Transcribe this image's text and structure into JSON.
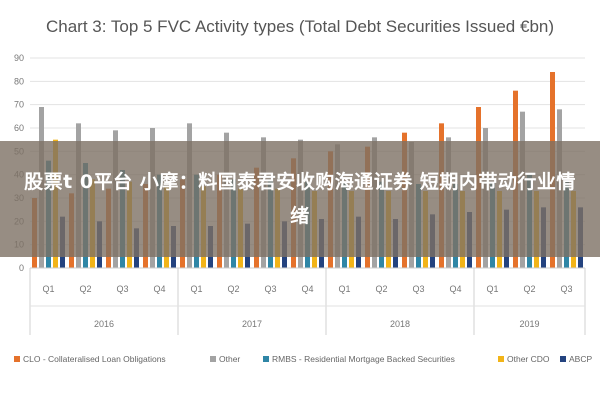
{
  "overlay": {
    "headline": "股票t 0平台 小摩：料国泰君安收购海通证券 短期内带动行业情绪"
  },
  "chart_data": {
    "type": "bar",
    "title": "Chart 3: Top 5 FVC Activity types (Total Debt Securities Issued €bn)",
    "xlabel": "",
    "ylabel": "",
    "ylim": [
      0,
      90
    ],
    "yticks": [
      0,
      10,
      20,
      30,
      40,
      50,
      60,
      70,
      80,
      90
    ],
    "grid": true,
    "legend_position": "bottom",
    "categories": [
      "Q1",
      "Q2",
      "Q3",
      "Q4",
      "Q1",
      "Q2",
      "Q3",
      "Q4",
      "Q1",
      "Q2",
      "Q3",
      "Q4",
      "Q1",
      "Q2",
      "Q3"
    ],
    "groups": [
      {
        "label": "2016",
        "count": 4
      },
      {
        "label": "2017",
        "count": 4
      },
      {
        "label": "2018",
        "count": 4
      },
      {
        "label": "2019",
        "count": 3
      }
    ],
    "series": [
      {
        "name": "CLO - Collateralised Loan Obligations",
        "color": "#e5722b",
        "values": [
          30,
          32,
          34,
          36,
          38,
          40,
          43,
          47,
          50,
          52,
          58,
          62,
          69,
          76,
          84
        ]
      },
      {
        "name": "Other",
        "color": "#a3a3a3",
        "values": [
          69,
          62,
          59,
          60,
          62,
          58,
          56,
          55,
          53,
          56,
          54,
          56,
          60,
          67,
          68
        ]
      },
      {
        "name": "RMBS - Residential Mortgage Backed Securities",
        "color": "#2f86a6",
        "values": [
          46,
          45,
          42,
          40,
          40,
          38,
          38,
          37,
          37,
          37,
          36,
          36,
          37,
          40,
          37
        ]
      },
      {
        "name": "Other CDO",
        "color": "#f2b418",
        "values": [
          55,
          38,
          37,
          35,
          35,
          34,
          34,
          33,
          33,
          33,
          33,
          33,
          33,
          33,
          33
        ]
      },
      {
        "name": "ABCP",
        "color": "#24437f",
        "values": [
          22,
          20,
          17,
          18,
          18,
          19,
          20,
          21,
          22,
          21,
          23,
          24,
          25,
          26,
          26
        ]
      }
    ]
  }
}
